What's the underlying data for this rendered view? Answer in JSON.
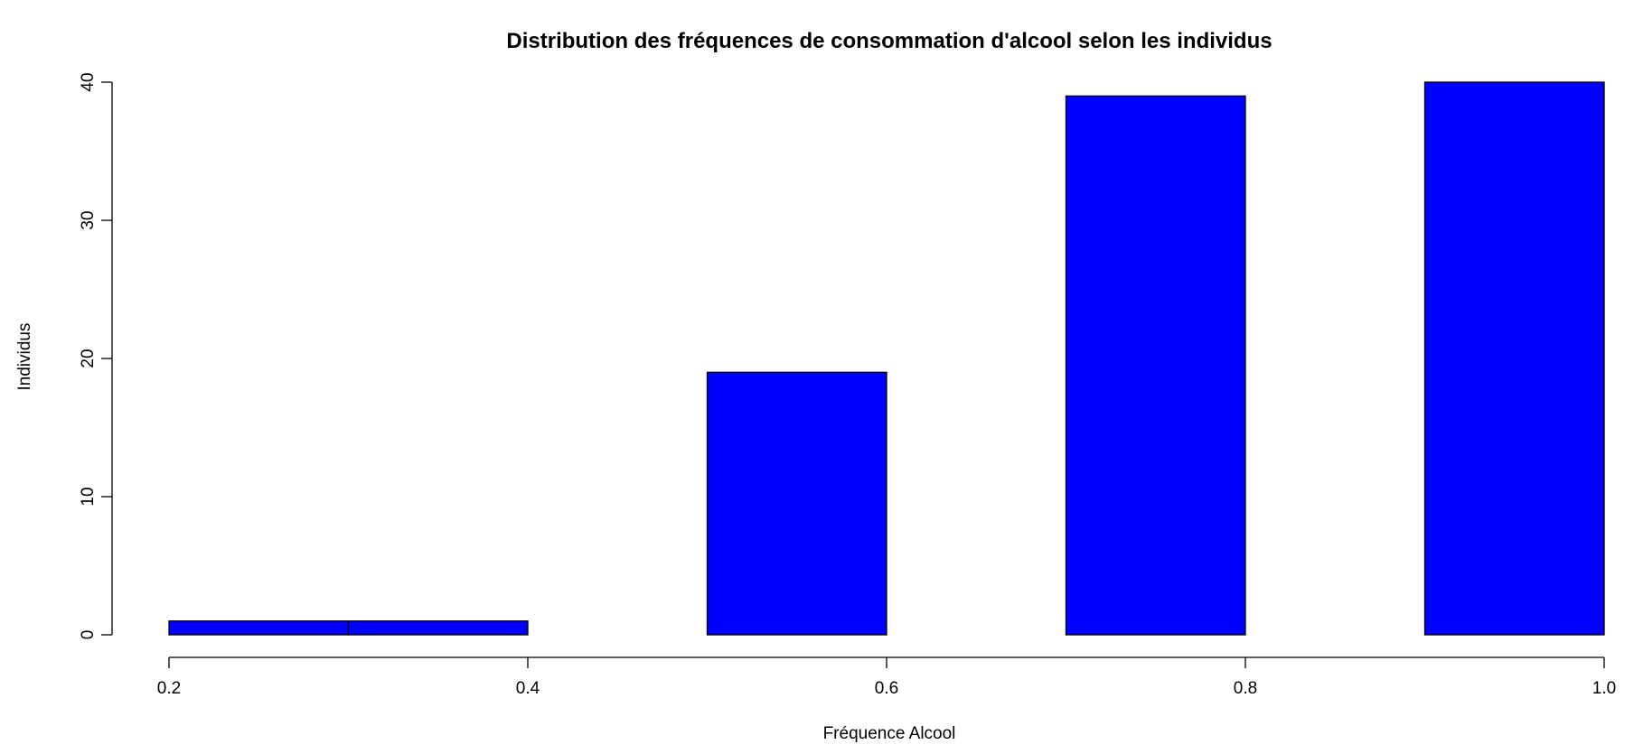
{
  "chart_data": {
    "type": "bar",
    "title": "Distribution des fréquences de consommation d'alcool selon les individus",
    "xlabel": "Fréquence Alcool",
    "ylabel": "Individus",
    "xlim": [
      0.2,
      1.0
    ],
    "ylim": [
      0,
      40
    ],
    "x_ticks": [
      0.2,
      0.4,
      0.6,
      0.8,
      1.0
    ],
    "x_tick_labels": [
      "0.2",
      "0.4",
      "0.6",
      "0.8",
      "1.0"
    ],
    "y_ticks": [
      0,
      10,
      20,
      30,
      40
    ],
    "y_tick_labels": [
      "0",
      "10",
      "20",
      "30",
      "40"
    ],
    "bins": [
      {
        "x0": 0.2,
        "x1": 0.3,
        "value": 1
      },
      {
        "x0": 0.3,
        "x1": 0.4,
        "value": 1
      },
      {
        "x0": 0.5,
        "x1": 0.6,
        "value": 19
      },
      {
        "x0": 0.7,
        "x1": 0.8,
        "value": 39
      },
      {
        "x0": 0.9,
        "x1": 1.0,
        "value": 40
      }
    ],
    "bar_color": "#0000ff",
    "grid": false
  }
}
